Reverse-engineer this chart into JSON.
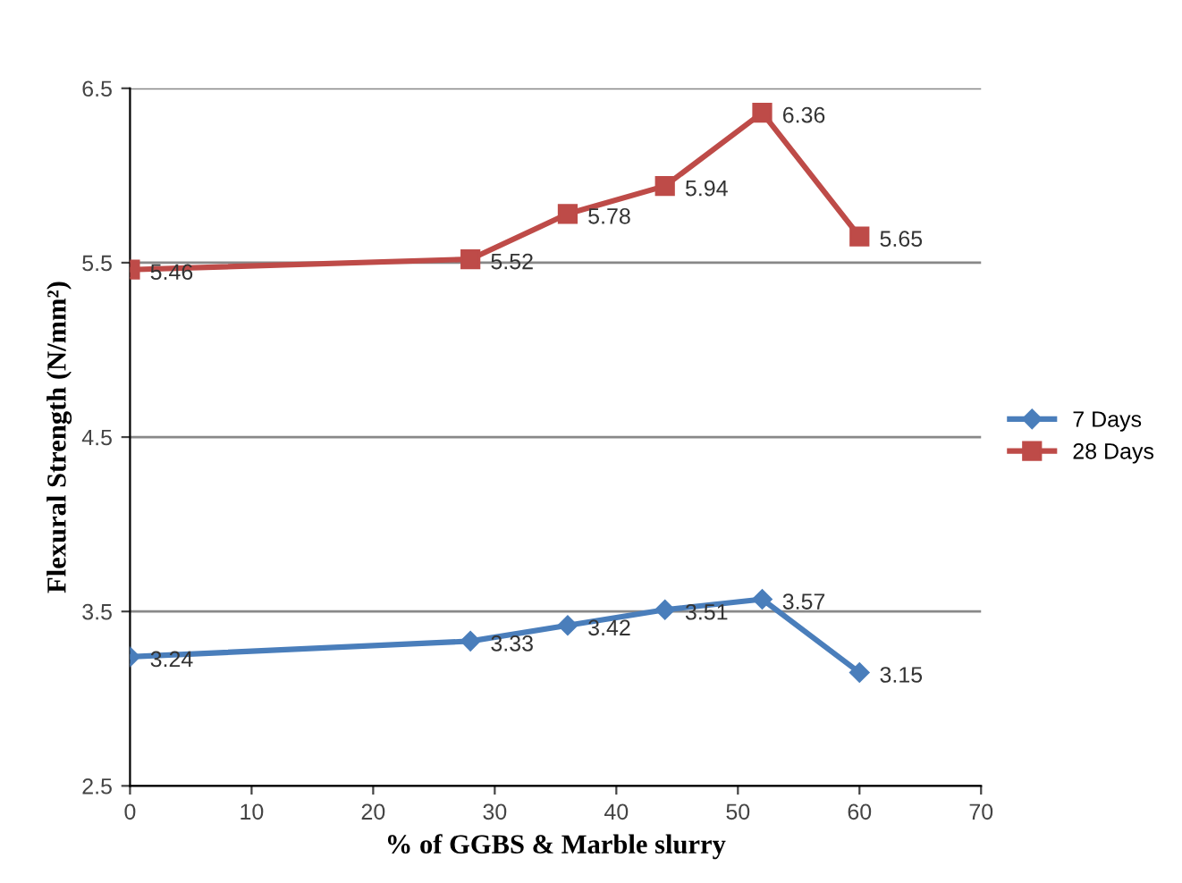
{
  "chart_data": {
    "type": "line",
    "xlabel": "% of GGBS & Marble slurry",
    "ylabel": "Flexural Strength (N/mm²)",
    "x": [
      0,
      28,
      36,
      44,
      52,
      60
    ],
    "series": [
      {
        "name": "7 Days",
        "color": "#4a7ebb",
        "marker": "diamond",
        "values": [
          3.24,
          3.33,
          3.42,
          3.51,
          3.57,
          3.15
        ]
      },
      {
        "name": "28 Days",
        "color": "#be4b48",
        "marker": "square",
        "values": [
          5.46,
          5.52,
          5.78,
          5.94,
          6.36,
          5.65
        ]
      }
    ],
    "xlim": [
      0,
      70
    ],
    "xticks": [
      0,
      10,
      20,
      30,
      40,
      50,
      60,
      70
    ],
    "ylim": [
      2.5,
      6.5
    ],
    "yticks": [
      2.5,
      3.5,
      4.5,
      5.5,
      6.5
    ],
    "grid": "y",
    "legend": "right",
    "data_labels": true
  }
}
